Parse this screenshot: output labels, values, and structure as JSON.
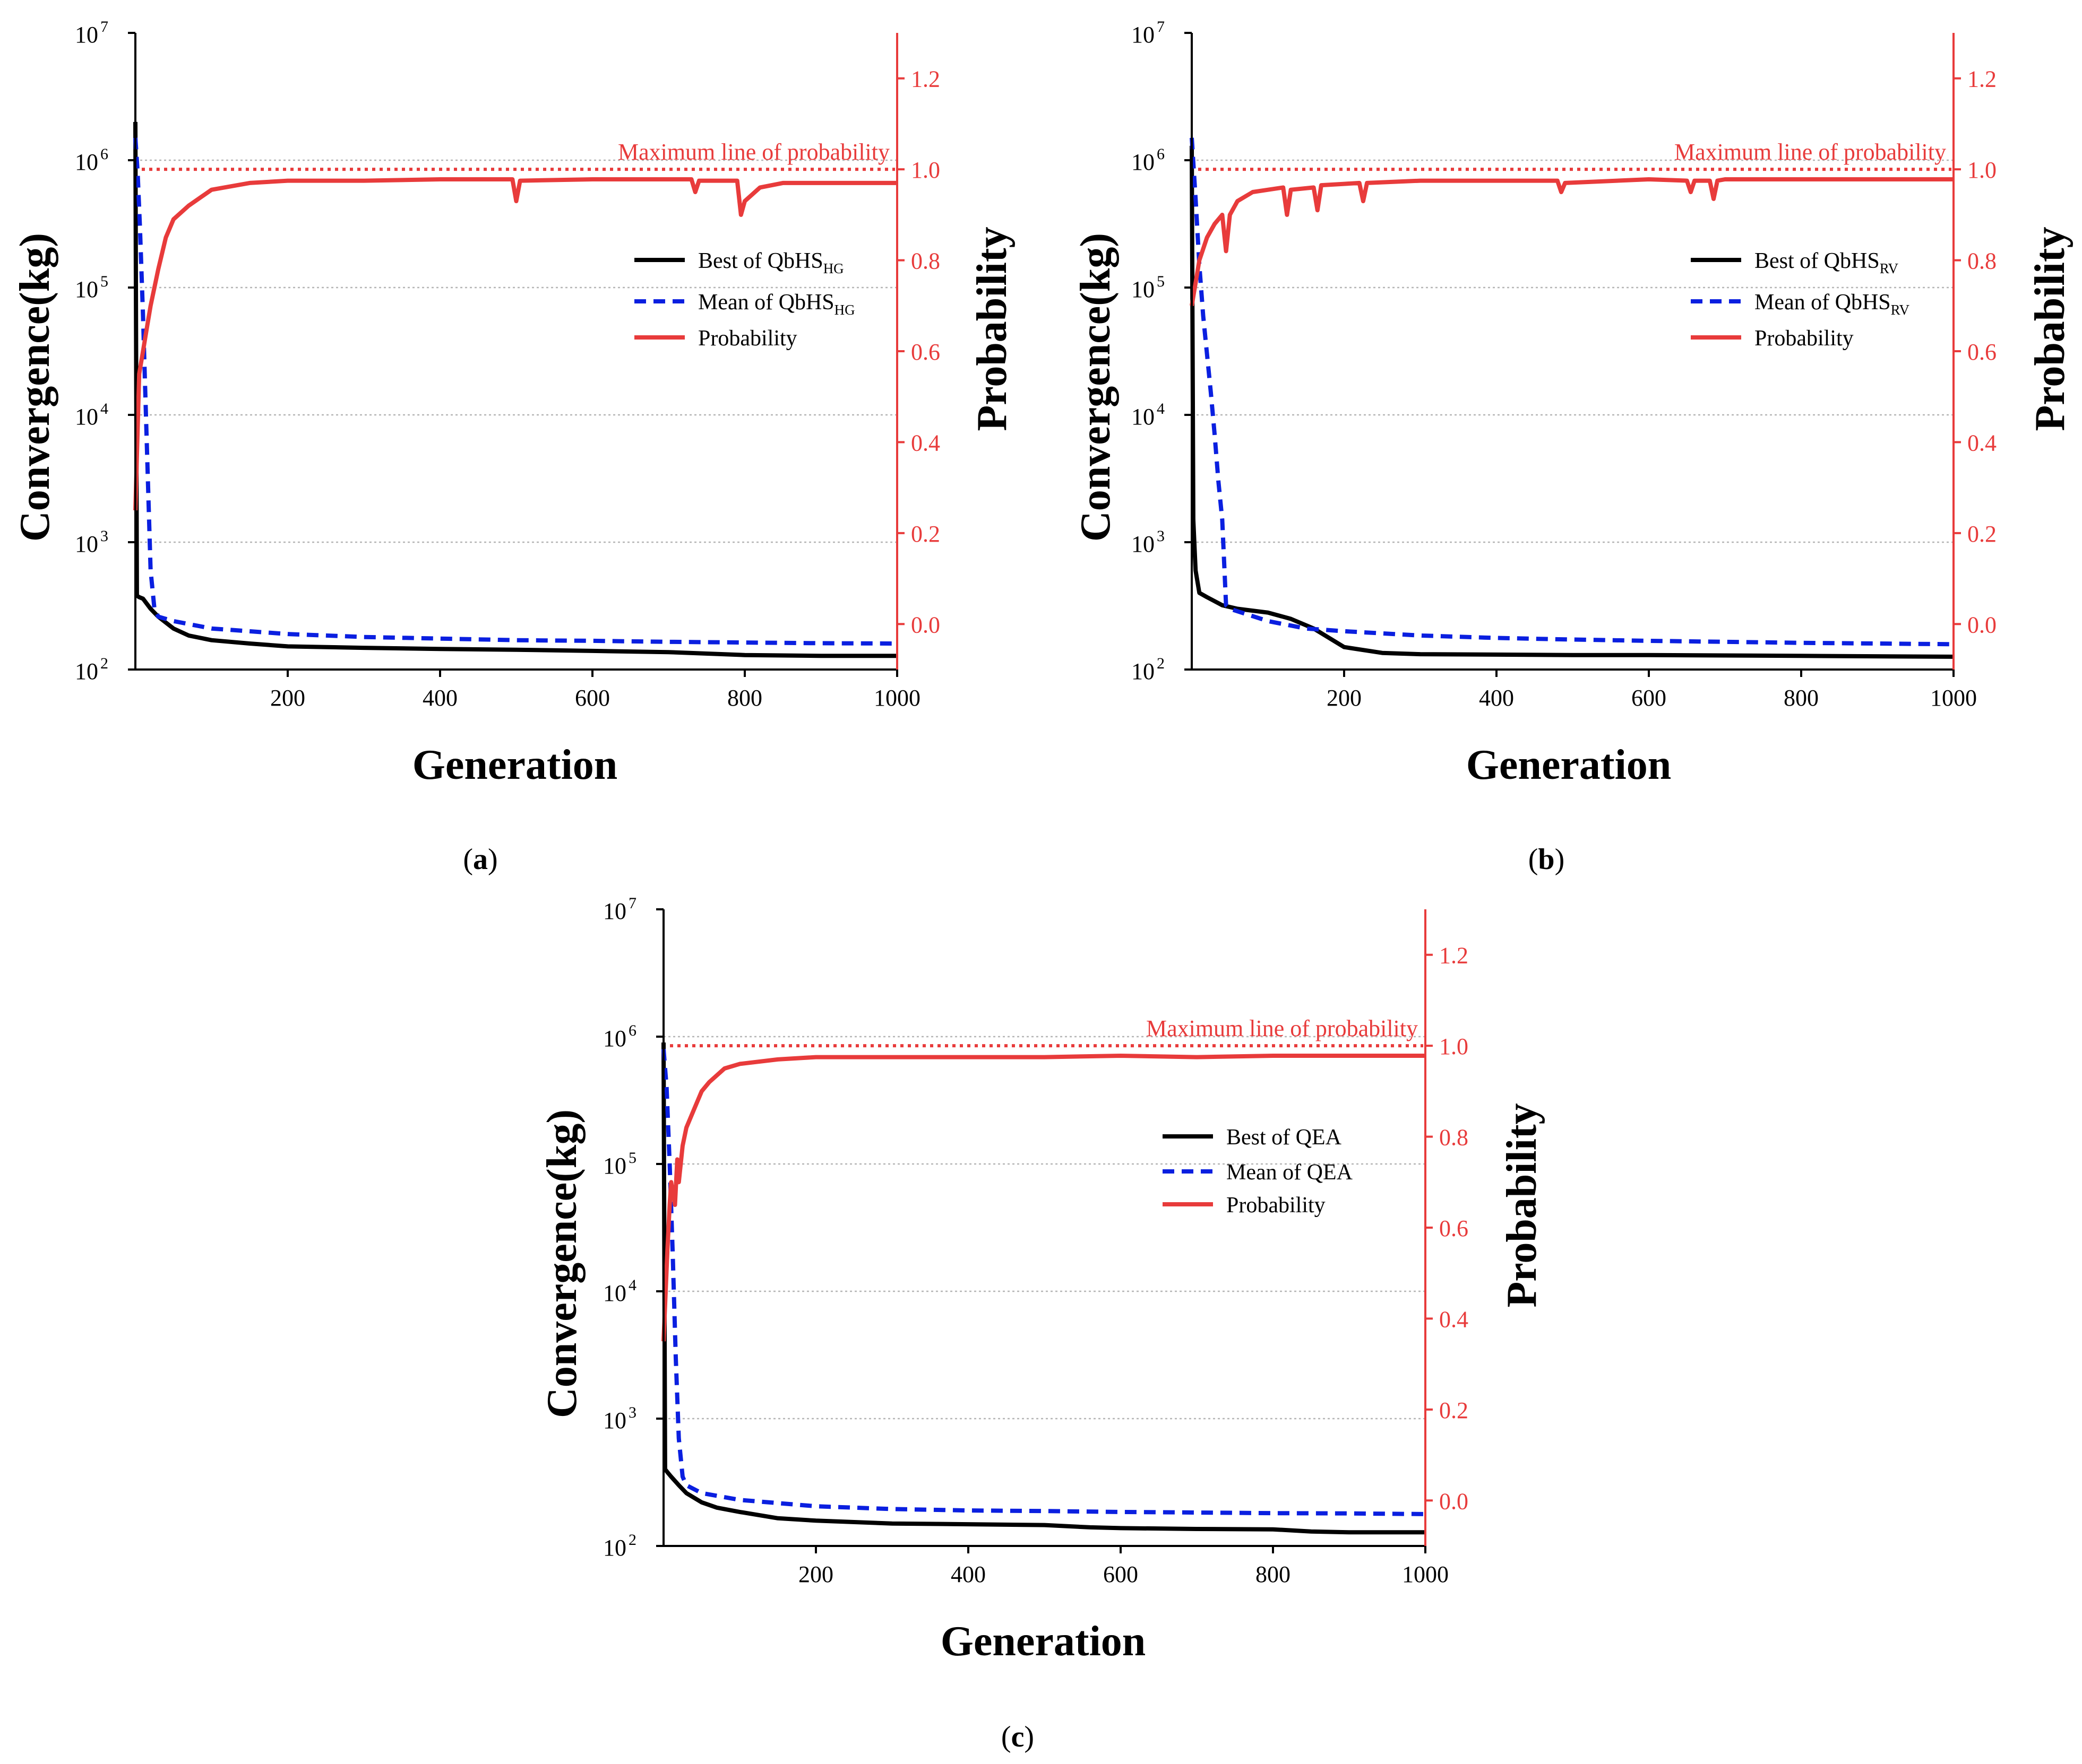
{
  "chart_data": [
    {
      "type": "line",
      "panel_label": "a",
      "xlabel": "Generation",
      "ylabel": "Convergence(kg)",
      "y2label": "Probability",
      "xlim": [
        0,
        1000
      ],
      "ylim": [
        100,
        10000000
      ],
      "yscale": "log",
      "y2lim": [
        -0.1,
        1.3
      ],
      "xticks": [
        "200",
        "400",
        "600",
        "800",
        "1000"
      ],
      "y2ticks": [
        "0.0",
        "0.2",
        "0.4",
        "0.6",
        "0.8",
        "1.0",
        "1.2"
      ],
      "grid": "horizontal dotted at decades",
      "legend_position": "right",
      "max_line": {
        "label": "Maximum line of probability",
        "value": 1.0
      },
      "colors": {
        "best": "#000000",
        "mean": "#0a1fe0",
        "probability": "#e83b3b"
      },
      "series": [
        {
          "name": "Best of QbHS",
          "name_sub": "HG",
          "axis": "left",
          "style": "solid",
          "x": [
            0,
            2,
            5,
            10,
            20,
            30,
            50,
            70,
            100,
            150,
            200,
            300,
            400,
            500,
            600,
            700,
            800,
            900,
            1000
          ],
          "y": [
            2000000,
            380,
            370,
            360,
            300,
            260,
            210,
            185,
            170,
            160,
            152,
            148,
            145,
            143,
            140,
            137,
            130,
            128,
            128
          ]
        },
        {
          "name": "Mean of QbHS",
          "name_sub": "HG",
          "axis": "left",
          "style": "dashed",
          "x": [
            0,
            3,
            6,
            10,
            15,
            20,
            25,
            30,
            50,
            100,
            200,
            300,
            400,
            500,
            600,
            700,
            800,
            900,
            1000
          ],
          "y": [
            1500000,
            800000,
            300000,
            60000,
            6000,
            600,
            300,
            260,
            240,
            210,
            190,
            180,
            175,
            170,
            168,
            165,
            163,
            161,
            160
          ]
        },
        {
          "name": "Probability",
          "axis": "right",
          "style": "solid",
          "x": [
            0,
            5,
            10,
            15,
            20,
            30,
            40,
            50,
            70,
            100,
            150,
            200,
            300,
            400,
            495,
            500,
            505,
            600,
            700,
            730,
            735,
            740,
            790,
            795,
            800,
            820,
            850,
            900,
            1000
          ],
          "y": [
            0.25,
            0.55,
            0.6,
            0.65,
            0.7,
            0.78,
            0.85,
            0.89,
            0.92,
            0.955,
            0.97,
            0.975,
            0.975,
            0.978,
            0.978,
            0.93,
            0.975,
            0.978,
            0.978,
            0.978,
            0.95,
            0.975,
            0.975,
            0.9,
            0.93,
            0.96,
            0.97,
            0.97,
            0.97
          ]
        }
      ]
    },
    {
      "type": "line",
      "panel_label": "b",
      "xlabel": "Generation",
      "ylabel": "Convergence(kg)",
      "y2label": "Probability",
      "xlim": [
        0,
        1000
      ],
      "ylim": [
        100,
        10000000
      ],
      "yscale": "log",
      "y2lim": [
        -0.1,
        1.3
      ],
      "xticks": [
        "200",
        "400",
        "600",
        "800",
        "1000"
      ],
      "y2ticks": [
        "0.0",
        "0.2",
        "0.4",
        "0.6",
        "0.8",
        "1.0",
        "1.2"
      ],
      "grid": "horizontal dotted at decades",
      "legend_position": "right",
      "max_line": {
        "label": "Maximum line of probability",
        "value": 1.0
      },
      "colors": {
        "best": "#000000",
        "mean": "#0a1fe0",
        "probability": "#e83b3b"
      },
      "series": [
        {
          "name": "Best of QbHS",
          "name_sub": "RV",
          "axis": "left",
          "style": "solid",
          "x": [
            0,
            2,
            5,
            10,
            20,
            40,
            60,
            100,
            130,
            160,
            200,
            250,
            300,
            400,
            500,
            600,
            700,
            800,
            900,
            1000
          ],
          "y": [
            1300000,
            1500,
            600,
            400,
            370,
            320,
            300,
            280,
            250,
            210,
            150,
            135,
            132,
            131,
            130,
            130,
            129,
            128,
            127,
            126
          ]
        },
        {
          "name": "Mean of QbHS",
          "name_sub": "RV",
          "axis": "left",
          "style": "dashed",
          "x": [
            0,
            5,
            10,
            15,
            20,
            25,
            30,
            35,
            40,
            45,
            50,
            100,
            150,
            200,
            300,
            400,
            500,
            600,
            700,
            800,
            900,
            1000
          ],
          "y": [
            1500000,
            500000,
            150000,
            60000,
            30000,
            15000,
            7000,
            3000,
            1500,
            320,
            300,
            240,
            210,
            200,
            185,
            177,
            172,
            168,
            165,
            162,
            160,
            158
          ]
        },
        {
          "name": "Probability",
          "axis": "right",
          "style": "solid",
          "x": [
            0,
            5,
            10,
            20,
            30,
            40,
            45,
            50,
            60,
            80,
            100,
            120,
            125,
            130,
            160,
            165,
            170,
            200,
            220,
            225,
            230,
            300,
            400,
            480,
            485,
            490,
            600,
            650,
            655,
            660,
            680,
            685,
            690,
            700,
            800,
            900,
            1000
          ],
          "y": [
            0.7,
            0.75,
            0.8,
            0.85,
            0.88,
            0.9,
            0.82,
            0.9,
            0.93,
            0.95,
            0.955,
            0.96,
            0.9,
            0.955,
            0.96,
            0.91,
            0.965,
            0.968,
            0.97,
            0.93,
            0.97,
            0.975,
            0.975,
            0.975,
            0.95,
            0.97,
            0.978,
            0.975,
            0.95,
            0.975,
            0.975,
            0.935,
            0.975,
            0.978,
            0.978,
            0.978,
            0.978
          ]
        }
      ]
    },
    {
      "type": "line",
      "panel_label": "c",
      "xlabel": "Generation",
      "ylabel": "Convergence(kg)",
      "y2label": "Probability",
      "xlim": [
        0,
        1000
      ],
      "ylim": [
        100,
        10000000
      ],
      "yscale": "log",
      "y2lim": [
        -0.1,
        1.3
      ],
      "xticks": [
        "200",
        "400",
        "600",
        "800",
        "1000"
      ],
      "y2ticks": [
        "0.0",
        "0.2",
        "0.4",
        "0.6",
        "0.8",
        "1.0",
        "1.2"
      ],
      "grid": "horizontal dotted at decades",
      "legend_position": "right",
      "max_line": {
        "label": "Maximum line of probability",
        "value": 1.0
      },
      "colors": {
        "best": "#000000",
        "mean": "#0a1fe0",
        "probability": "#e83b3b"
      },
      "series": [
        {
          "name": "Best of QEA",
          "axis": "left",
          "style": "solid",
          "x": [
            0,
            2,
            5,
            10,
            20,
            30,
            50,
            70,
            100,
            150,
            200,
            300,
            400,
            500,
            560,
            600,
            700,
            800,
            850,
            900,
            1000
          ],
          "y": [
            900000,
            400,
            380,
            350,
            300,
            260,
            220,
            200,
            185,
            165,
            158,
            150,
            148,
            146,
            140,
            138,
            136,
            135,
            130,
            128,
            128
          ]
        },
        {
          "name": "Mean of QEA",
          "axis": "left",
          "style": "dashed",
          "x": [
            0,
            4,
            8,
            12,
            16,
            20,
            25,
            30,
            50,
            100,
            200,
            300,
            400,
            500,
            600,
            700,
            800,
            900,
            1000
          ],
          "y": [
            800000,
            400000,
            100000,
            20000,
            3000,
            700,
            350,
            300,
            260,
            230,
            205,
            195,
            190,
            188,
            185,
            183,
            181,
            180,
            178
          ]
        },
        {
          "name": "Probability",
          "axis": "right",
          "style": "solid",
          "x": [
            0,
            5,
            8,
            10,
            15,
            18,
            20,
            25,
            30,
            40,
            50,
            60,
            80,
            100,
            150,
            200,
            300,
            400,
            500,
            600,
            700,
            800,
            900,
            1000
          ],
          "y": [
            0.35,
            0.55,
            0.65,
            0.7,
            0.65,
            0.75,
            0.7,
            0.78,
            0.82,
            0.86,
            0.9,
            0.92,
            0.95,
            0.96,
            0.97,
            0.975,
            0.975,
            0.975,
            0.975,
            0.978,
            0.975,
            0.978,
            0.978,
            0.978
          ]
        }
      ]
    }
  ]
}
